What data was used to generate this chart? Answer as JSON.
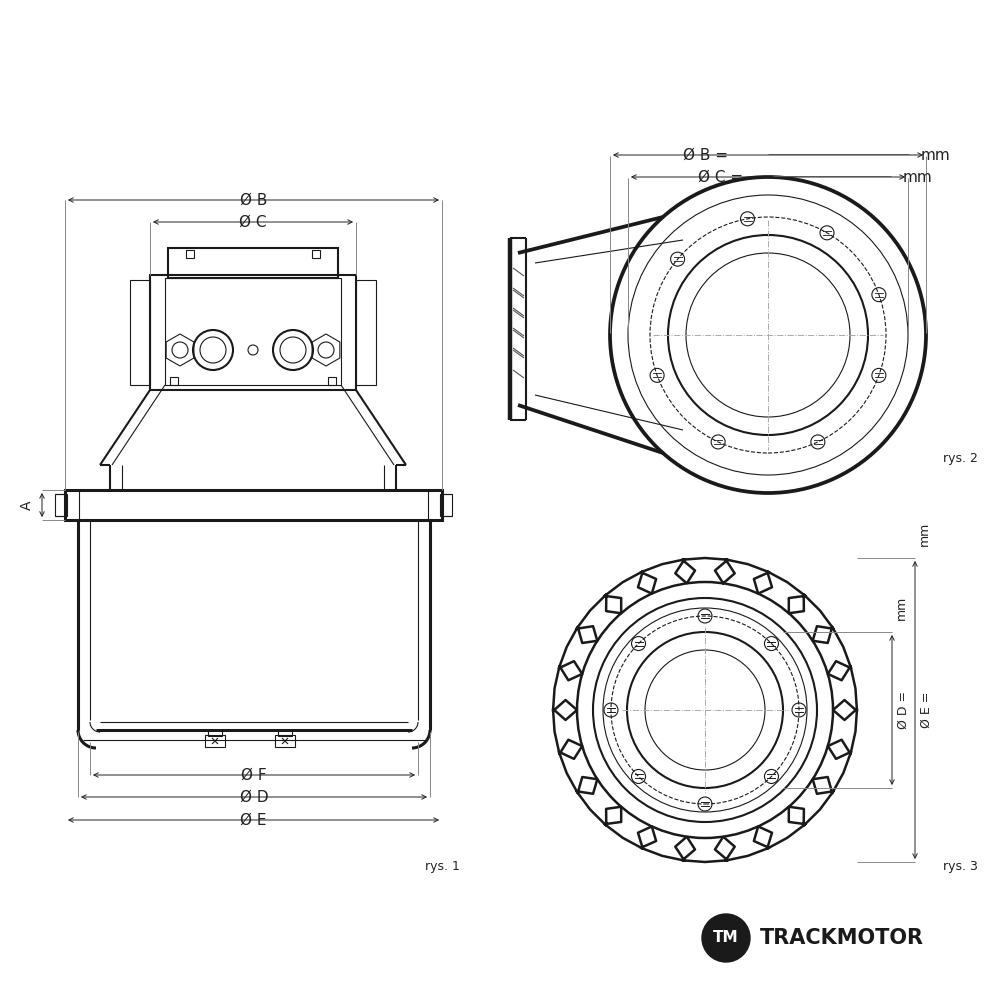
{
  "bg_color": "#ffffff",
  "lc": "#1a1a1a",
  "dc": "#222222",
  "lw_heavy": 2.2,
  "lw_main": 1.5,
  "lw_thin": 0.8,
  "lw_dim": 0.7,
  "lw_xhair": 0.7,
  "fs_label": 11,
  "fs_small": 9,
  "fs_rys": 9,
  "label_B": "Ø B",
  "label_C": "Ø C",
  "label_D": "Ø D",
  "label_E": "Ø E",
  "label_F": "Ø F",
  "label_A": "A",
  "label_B2": "Ø B =",
  "label_C2": "Ø C =",
  "label_D2": "Ø D =",
  "label_E2": "Ø E =",
  "label_mm": "mm",
  "rys1": "rys. 1",
  "rys2": "rys. 2",
  "rys3": "rys. 3",
  "tm_text": "TRACKMOTOR"
}
